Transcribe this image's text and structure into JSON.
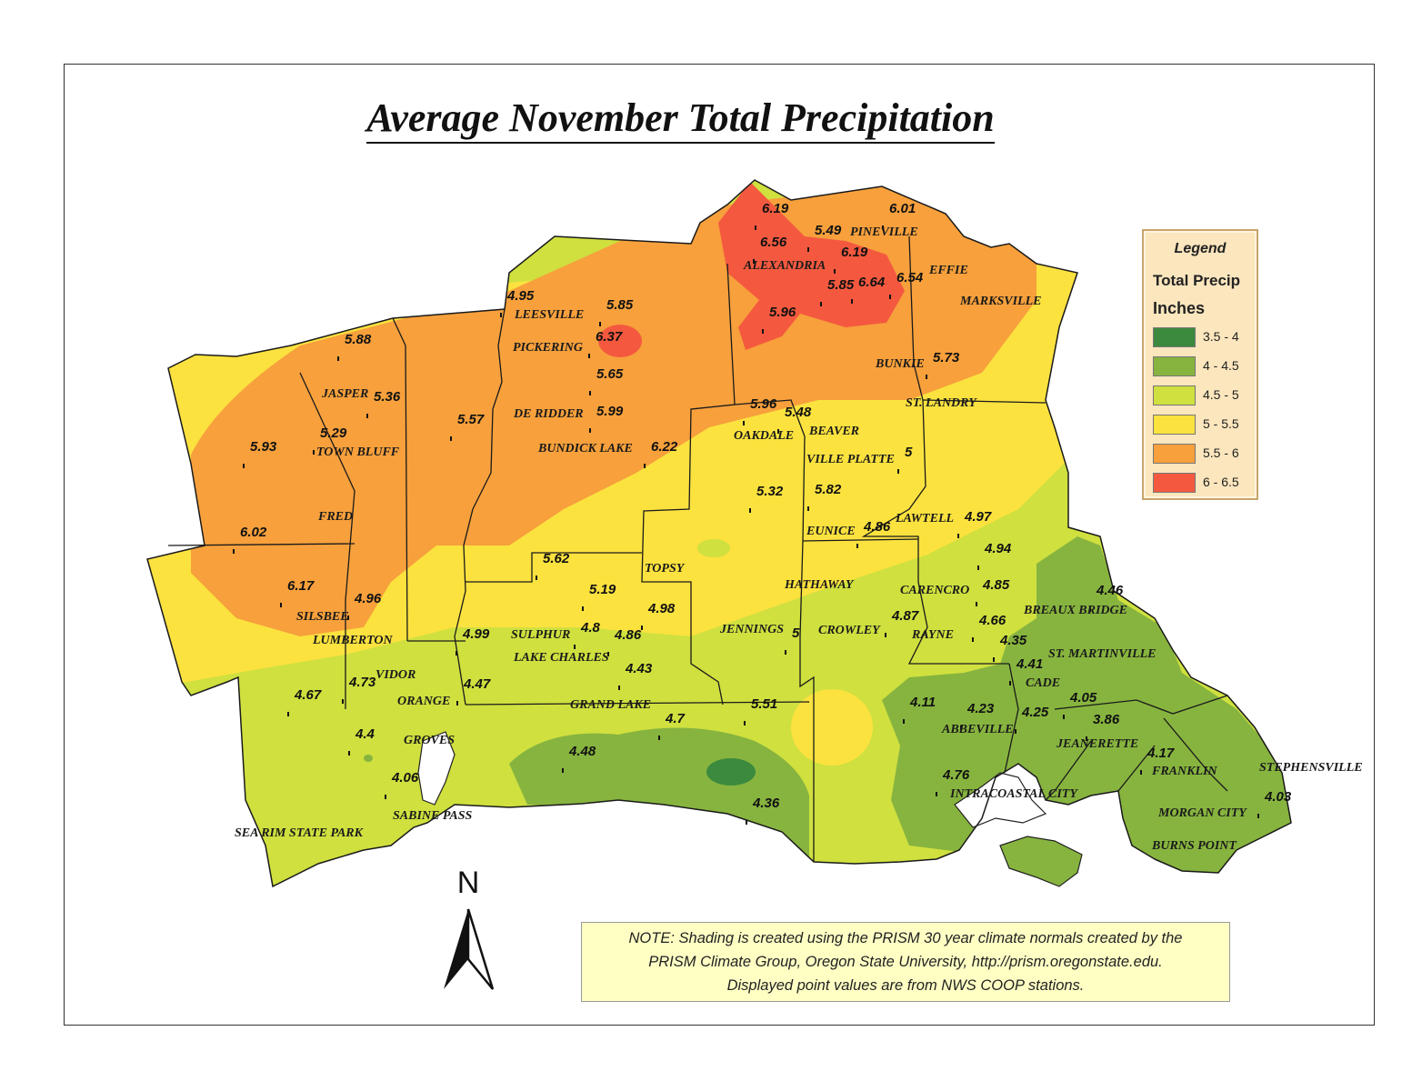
{
  "title": "Average November Total Precipitation",
  "legend": {
    "title": "Legend",
    "subtitle": "Total Precip",
    "unit": "Inches",
    "items": [
      {
        "label": "3.5 - 4",
        "color": "#3c8a3e"
      },
      {
        "label": "4 - 4.5",
        "color": "#87b43f"
      },
      {
        "label": "4.5 - 5",
        "color": "#cfe03f"
      },
      {
        "label": "5 - 5.5",
        "color": "#fbe23f"
      },
      {
        "label": "5.5 - 6",
        "color": "#f7a03c"
      },
      {
        "label": "6 - 6.5",
        "color": "#f4593f"
      }
    ]
  },
  "north_arrow": "N",
  "note": {
    "line1": "NOTE: Shading is created using the PRISM 30 year climate normals created by the",
    "line2": "PRISM Climate Group, Oregon State University, http://prism.oregonstate.edu.",
    "line3": "Displayed point values are from NWS COOP stations."
  },
  "cities": [
    "PINEVILLE",
    "ALEXANDRIA",
    "EFFIE",
    "MARKSVILLE",
    "LEESVILLE",
    "PICKERING",
    "BUNKIE",
    "ST. LANDRY",
    "JASPER",
    "DE RIDDER",
    "OAKDALE",
    "BEAVER",
    "TOWN BLUFF",
    "BUNDICK LAKE",
    "VILLE PLATTE",
    "FRED",
    "LAWTELL",
    "EUNICE",
    "TOPSY",
    "HATHAWAY",
    "CARENCRO",
    "BREAUX BRIDGE",
    "SILSBEE",
    "SULPHUR",
    "JENNINGS",
    "CROWLEY",
    "RAYNE",
    "LUMBERTON",
    "LAKE CHARLES",
    "ST. MARTINVILLE",
    "VIDOR",
    "CADE",
    "ORANGE",
    "GRAND LAKE",
    "ABBEVILLE",
    "GROVES",
    "JEANERETTE",
    "FRANKLIN",
    "STEPHENSVILLE",
    "INTRACOASTAL CITY",
    "MORGAN CITY",
    "SABINE PASS",
    "SEA RIM STATE PARK",
    "BURNS POINT"
  ],
  "station_values": [
    "6.19",
    "6.01",
    "5.49",
    "6.56",
    "6.19",
    "6.54",
    "5.85",
    "6.64",
    "4.95",
    "5.85",
    "5.96",
    "6.37",
    "5.88",
    "5.65",
    "5.73",
    "5.36",
    "5.96",
    "5.48",
    "5.57",
    "5.99",
    "5.29",
    "5.93",
    "6.22",
    "5",
    "5.32",
    "5.82",
    "6.02",
    "4.86",
    "4.97",
    "4.94",
    "5.62",
    "6.17",
    "4.85",
    "5.19",
    "4.96",
    "4.98",
    "4.46",
    "4.8",
    "4.87",
    "4.86",
    "4.66",
    "4.99",
    "5",
    "4.35",
    "4.43",
    "4.41",
    "4.73",
    "4.47",
    "4.67",
    "4.05",
    "4.11",
    "4.23",
    "4.25",
    "3.86",
    "5.51",
    "4.7",
    "4.4",
    "4.17",
    "4.48",
    "4.06",
    "4.76",
    "4.36",
    "4.03"
  ]
}
